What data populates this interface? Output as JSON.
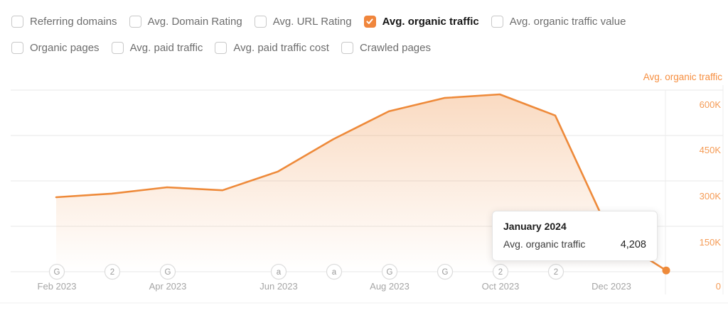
{
  "filters": {
    "row1": [
      {
        "label": "Referring domains",
        "checked": false
      },
      {
        "label": "Avg. Domain Rating",
        "checked": false
      },
      {
        "label": "Avg. URL Rating",
        "checked": false
      },
      {
        "label": "Avg. organic traffic",
        "checked": true
      },
      {
        "label": "Avg. organic traffic value",
        "checked": false
      }
    ],
    "row2": [
      {
        "label": "Organic pages",
        "checked": false
      },
      {
        "label": "Avg. paid traffic",
        "checked": false
      },
      {
        "label": "Avg. paid traffic cost",
        "checked": false
      },
      {
        "label": "Crawled pages",
        "checked": false
      }
    ]
  },
  "chart": {
    "axis_title": "Avg. organic traffic",
    "y_ticks": [
      "600K",
      "450K",
      "300K",
      "150K",
      "0"
    ],
    "x_ticks": [
      "Feb 2023",
      "Apr 2023",
      "Jun 2023",
      "Aug 2023",
      "Oct 2023",
      "Dec 2023"
    ],
    "events": [
      {
        "letter": "G"
      },
      {
        "letter": "2"
      },
      {
        "letter": "G"
      },
      {
        "letter": "a"
      },
      {
        "letter": "a"
      },
      {
        "letter": "G"
      },
      {
        "letter": "G"
      },
      {
        "letter": "2"
      },
      {
        "letter": "2"
      }
    ]
  },
  "tooltip": {
    "title": "January 2024",
    "label": "Avg. organic traffic",
    "value": "4,208"
  },
  "colors": {
    "accent_orange": "#f0863c",
    "line_orange": "#ee8a3a",
    "axis_label_orange": "#f59b55",
    "gridline": "#e7e7e7",
    "muted_text": "#6d6d6d"
  },
  "chart_data": {
    "type": "area",
    "title": "Avg. organic traffic",
    "x": [
      "Feb 2023",
      "Mar 2023",
      "Apr 2023",
      "May 2023",
      "Jun 2023",
      "Jul 2023",
      "Aug 2023",
      "Sep 2023",
      "Oct 2023",
      "Nov 2023",
      "Dec 2023",
      "Jan 2024"
    ],
    "series": [
      {
        "name": "Avg. organic traffic",
        "values": [
          246000,
          258000,
          279000,
          269000,
          331000,
          438000,
          530000,
          574000,
          586000,
          516000,
          120000,
          4208
        ]
      }
    ],
    "ylabel": "Avg. organic traffic",
    "ylim": [
      0,
      600000
    ],
    "y_tick_labels": [
      "0",
      "150K",
      "300K",
      "450K",
      "600K"
    ],
    "x_tick_labels": [
      "Feb 2023",
      "Apr 2023",
      "Jun 2023",
      "Aug 2023",
      "Oct 2023",
      "Dec 2023"
    ],
    "grid": true,
    "legend_position": "top-right",
    "highlighted_point": {
      "x": "January 2024",
      "value": 4208
    }
  }
}
